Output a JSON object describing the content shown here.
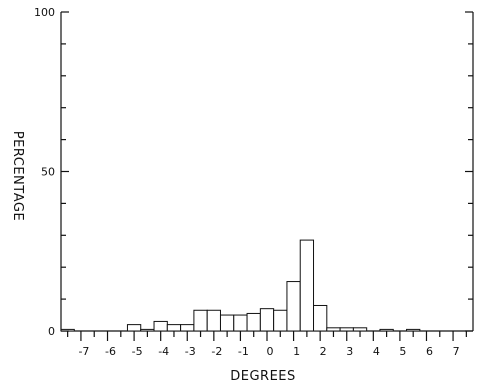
{
  "chart_data": {
    "type": "bar",
    "title": "",
    "xlabel": "DEGREES",
    "ylabel": "PERCENTAGE",
    "xlim": [
      -7.75,
      7.75
    ],
    "ylim": [
      0,
      100
    ],
    "grid": false,
    "legend": "none",
    "bin_width": 0.5,
    "x_ticks": [
      -7,
      -6,
      -5,
      -4,
      -3,
      -2,
      -1,
      0,
      1,
      2,
      3,
      4,
      5,
      6,
      7
    ],
    "x_tick_labels": [
      "-7",
      "-6",
      "-5",
      "-4",
      "-3",
      "-2",
      "-1",
      "0",
      "1",
      "2",
      "3",
      "4",
      "5",
      "6",
      "7"
    ],
    "y_ticks": [
      0,
      50,
      100
    ],
    "y_tick_labels": [
      "0",
      "50",
      "100"
    ],
    "bin_starts": [
      -7.75,
      -7.25,
      -6.75,
      -6.25,
      -5.75,
      -5.25,
      -4.75,
      -4.25,
      -3.75,
      -3.25,
      -2.75,
      -2.25,
      -1.75,
      -1.25,
      -0.75,
      -0.25,
      0.25,
      0.75,
      1.25,
      1.75,
      2.25,
      2.75,
      3.25,
      3.75,
      4.25,
      4.75,
      5.25,
      5.75,
      6.25,
      6.75,
      7.25
    ],
    "values": [
      0.5,
      0,
      0,
      0,
      0,
      2,
      0.5,
      3,
      2,
      2,
      6.5,
      6.5,
      5,
      5,
      5.5,
      7,
      6.5,
      15.5,
      28.5,
      8,
      1,
      1,
      1,
      0,
      0.5,
      0,
      0.5,
      0,
      0,
      0,
      0
    ]
  }
}
